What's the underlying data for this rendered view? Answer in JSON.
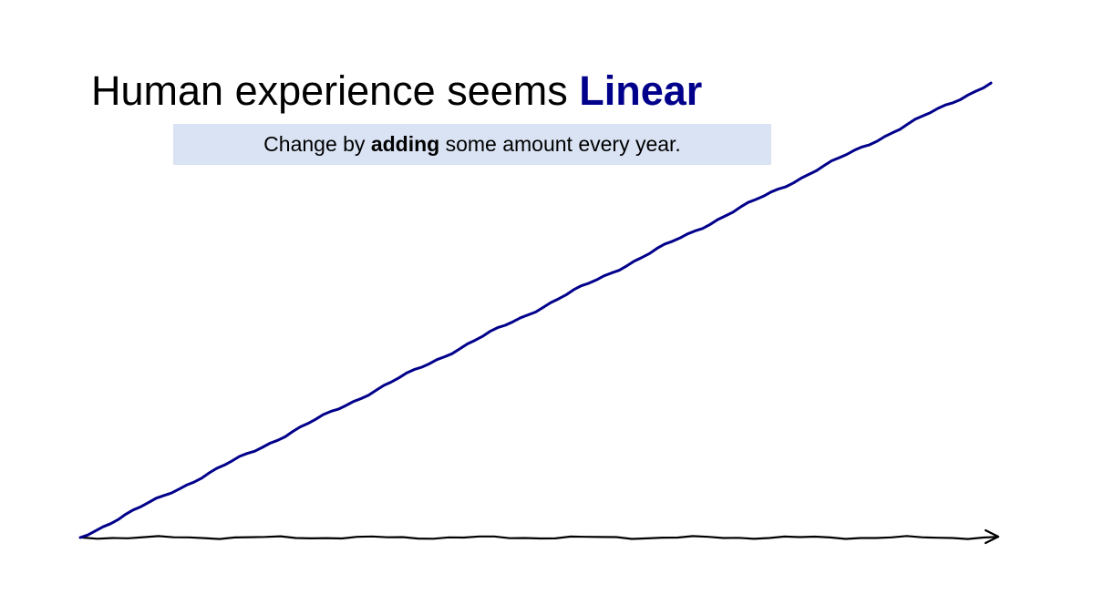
{
  "slide": {
    "title_prefix": "Human experience seems ",
    "title_accent": "Linear",
    "subtitle_before": "Change by ",
    "subtitle_bold": "adding",
    "subtitle_after": " some amount every year."
  },
  "colors": {
    "accent": "#00008B",
    "line": "#00008B",
    "axis": "#000000",
    "subtitle_bg": "#DAE3F3"
  },
  "chart_data": {
    "type": "line",
    "title": "",
    "xlabel": "",
    "ylabel": "",
    "grid": false,
    "legend": "none",
    "series": [
      {
        "x": [
          0,
          1
        ],
        "y": [
          0,
          1
        ]
      }
    ],
    "xlim": [
      0,
      1
    ],
    "ylim": [
      0,
      1
    ]
  }
}
